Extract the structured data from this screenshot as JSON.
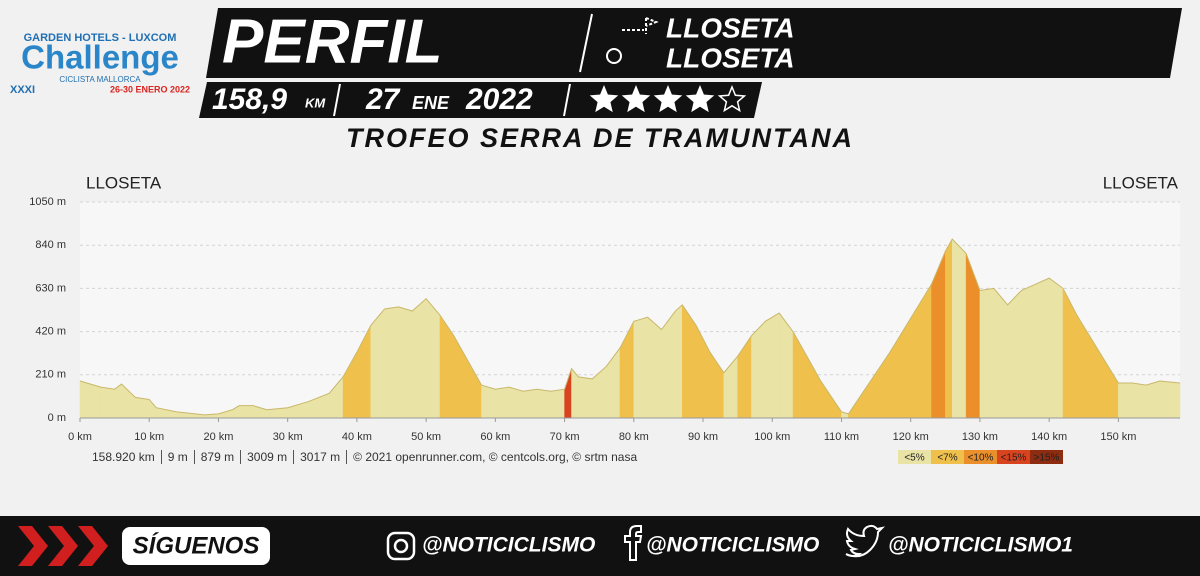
{
  "header": {
    "logo_top": "GARDEN HOTELS - LUXCOM",
    "logo_name": "Challenge",
    "logo_sub": "CICLISTA MALLORCA",
    "logo_edition": "XXXI",
    "logo_dates": "26-30 ENERO 2022",
    "title": "PERFIL",
    "start": "LLOSETA",
    "finish": "LLOSETA",
    "distance": "158,9",
    "distance_unit": "KM",
    "day": "27",
    "month": "ENE",
    "year": "2022",
    "rating": 4,
    "rating_max": 5,
    "stage_name": "TROFEO SERRA DE TRAMUNTANA"
  },
  "chart_data": {
    "type": "area",
    "start_label": "LLOSETA",
    "end_label": "LLOSETA",
    "x": [
      0,
      3,
      5,
      6,
      8,
      10,
      11,
      14,
      18,
      20,
      22,
      23,
      25,
      27,
      30,
      33,
      36,
      38,
      40,
      42,
      44,
      46,
      48,
      50,
      52,
      54,
      56,
      58,
      60,
      62,
      64,
      66,
      68,
      70,
      71,
      72,
      74,
      76,
      78,
      80,
      82,
      84,
      86,
      87,
      89,
      91,
      93,
      95,
      97,
      99,
      101,
      103,
      105,
      107,
      109,
      110,
      111,
      113,
      115,
      117,
      119,
      121,
      123,
      125,
      126,
      128,
      130,
      132,
      134,
      136,
      138,
      140,
      142,
      144,
      146,
      148,
      150,
      152,
      154,
      156,
      158.9
    ],
    "values": [
      180,
      150,
      140,
      165,
      100,
      90,
      50,
      30,
      15,
      20,
      40,
      60,
      60,
      40,
      50,
      80,
      120,
      200,
      320,
      450,
      530,
      540,
      520,
      580,
      500,
      400,
      280,
      160,
      140,
      150,
      130,
      140,
      130,
      140,
      240,
      200,
      190,
      250,
      340,
      470,
      490,
      430,
      520,
      550,
      450,
      320,
      220,
      300,
      400,
      470,
      510,
      420,
      300,
      180,
      80,
      30,
      20,
      120,
      220,
      320,
      430,
      540,
      650,
      810,
      870,
      800,
      620,
      630,
      550,
      620,
      650,
      680,
      630,
      500,
      390,
      280,
      170,
      170,
      160,
      180,
      170
    ],
    "xlim": [
      0,
      158.9
    ],
    "ylim": [
      0,
      1050
    ],
    "xticks": [
      {
        "value": 0,
        "label": "0 km"
      },
      {
        "value": 10,
        "label": "10 km"
      },
      {
        "value": 20,
        "label": "20 km"
      },
      {
        "value": 30,
        "label": "30 km"
      },
      {
        "value": 40,
        "label": "40 km"
      },
      {
        "value": 50,
        "label": "50 km"
      },
      {
        "value": 60,
        "label": "60 km"
      },
      {
        "value": 70,
        "label": "70 km"
      },
      {
        "value": 80,
        "label": "80 km"
      },
      {
        "value": 90,
        "label": "90 km"
      },
      {
        "value": 100,
        "label": "100 km"
      },
      {
        "value": 110,
        "label": "110 km"
      },
      {
        "value": 120,
        "label": "120 km"
      },
      {
        "value": 130,
        "label": "130 km"
      },
      {
        "value": 140,
        "label": "140 km"
      },
      {
        "value": 150,
        "label": "150 km"
      }
    ],
    "yticks": [
      {
        "value": 0,
        "label": "0 m"
      },
      {
        "value": 210,
        "label": "210 m"
      },
      {
        "value": 420,
        "label": "420 m"
      },
      {
        "value": 630,
        "label": "630 m"
      },
      {
        "value": 840,
        "label": "840 m"
      },
      {
        "value": 1050,
        "label": "1050 m"
      }
    ],
    "grid": true,
    "color": "#e9e3a6",
    "grade_classes": [
      {
        "label": "<5%",
        "below": 5,
        "color": "#e9e3a6"
      },
      {
        "label": "<7%",
        "below": 7,
        "color": "#f0c04c"
      },
      {
        "label": "<10%",
        "below": 10,
        "color": "#eb8f2b"
      },
      {
        "label": "<15%",
        "below": 15,
        "color": "#d8441f"
      },
      {
        "label": ">15%",
        "below": null,
        "color": "#8e2c12"
      }
    ],
    "stats": [
      "158.920 km",
      "9 m",
      "879 m",
      "3009 m",
      "3017 m",
      "© 2021 openrunner.com, © centcols.org, © srtm nasa"
    ]
  },
  "footer": {
    "follow": "SÍGUENOS",
    "instagram": "@NOTICICLISMO",
    "facebook": "@NOTICICLISMO",
    "twitter": "@NOTICICLISMO1"
  }
}
